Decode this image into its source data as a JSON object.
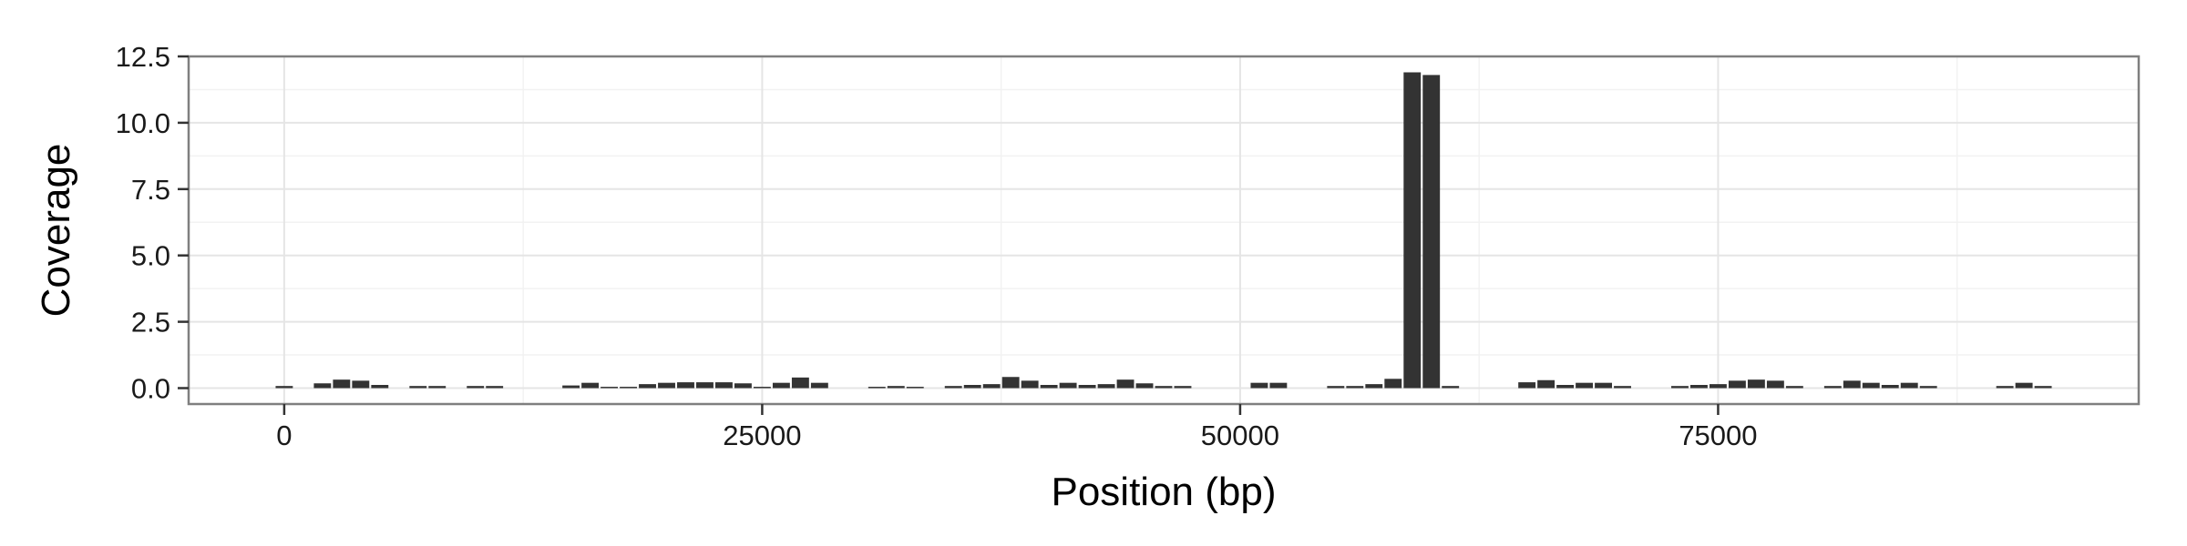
{
  "chart_data": {
    "type": "bar",
    "title": "",
    "xlabel": "Position (bp)",
    "ylabel": "Coverage",
    "xlim": [
      -5000,
      97000
    ],
    "ylim": [
      -0.6,
      12.5
    ],
    "x_ticks": [
      0,
      25000,
      50000,
      75000
    ],
    "x_tick_labels": [
      "0",
      "25000",
      "50000",
      "75000"
    ],
    "y_ticks": [
      0,
      2.5,
      5,
      7.5,
      10,
      12.5
    ],
    "y_tick_labels": [
      "0.0",
      "2.5",
      "5.0",
      "7.5",
      "10.0",
      "12.5"
    ],
    "grid": true,
    "legend": false,
    "bar_width": 900,
    "bar_color": "#333333",
    "x": [
      0,
      2000,
      3000,
      4000,
      5000,
      7000,
      8000,
      10000,
      11000,
      15000,
      16000,
      17000,
      18000,
      19000,
      20000,
      21000,
      22000,
      23000,
      24000,
      25000,
      26000,
      27000,
      28000,
      31000,
      32000,
      33000,
      35000,
      36000,
      37000,
      38000,
      39000,
      40000,
      41000,
      42000,
      43000,
      44000,
      45000,
      46000,
      47000,
      51000,
      52000,
      55000,
      56000,
      57000,
      58000,
      59000,
      60000,
      61000,
      65000,
      66000,
      67000,
      68000,
      69000,
      70000,
      73000,
      74000,
      75000,
      76000,
      77000,
      78000,
      79000,
      81000,
      82000,
      83000,
      84000,
      85000,
      86000,
      90000,
      91000,
      92000
    ],
    "values": [
      0.08,
      0.18,
      0.32,
      0.28,
      0.12,
      0.08,
      0.08,
      0.08,
      0.08,
      0.1,
      0.2,
      0.05,
      0.05,
      0.15,
      0.2,
      0.22,
      0.22,
      0.22,
      0.18,
      0.05,
      0.2,
      0.4,
      0.2,
      0.05,
      0.08,
      0.05,
      0.08,
      0.12,
      0.15,
      0.42,
      0.28,
      0.12,
      0.2,
      0.12,
      0.15,
      0.32,
      0.18,
      0.08,
      0.08,
      0.2,
      0.2,
      0.08,
      0.08,
      0.15,
      0.35,
      11.9,
      11.8,
      0.08,
      0.22,
      0.3,
      0.12,
      0.2,
      0.2,
      0.08,
      0.08,
      0.12,
      0.15,
      0.28,
      0.32,
      0.28,
      0.08,
      0.08,
      0.28,
      0.2,
      0.12,
      0.2,
      0.08,
      0.08,
      0.2,
      0.08
    ]
  }
}
